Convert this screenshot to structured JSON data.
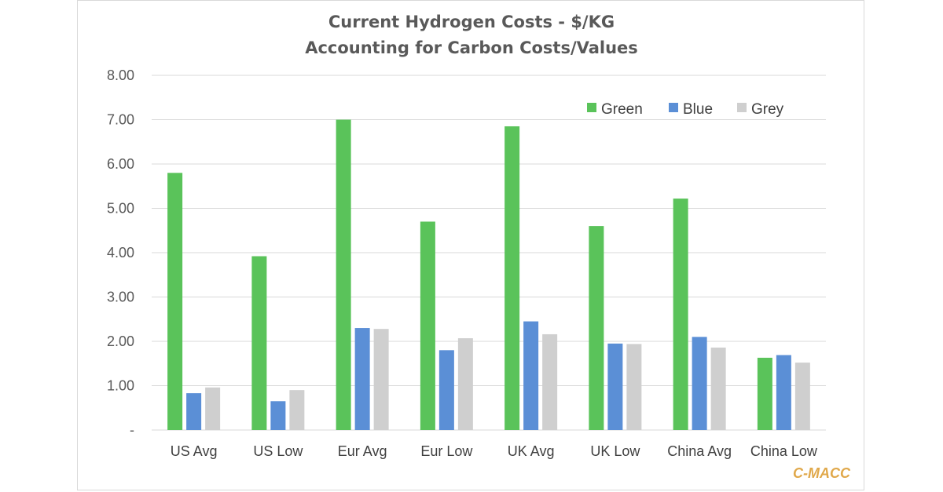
{
  "chart_data": {
    "type": "bar",
    "title": "Current Hydrogen Costs - $/KG",
    "subtitle": "Accounting for Carbon Costs/Values",
    "xlabel": "",
    "ylabel": "",
    "ylim": [
      0,
      8
    ],
    "yticks": [
      0,
      1,
      2,
      3,
      4,
      5,
      6,
      7,
      8
    ],
    "ytick_labels": [
      "-",
      "1.00",
      "2.00",
      "3.00",
      "4.00",
      "5.00",
      "6.00",
      "7.00",
      "8.00"
    ],
    "grid": true,
    "legend_position": "top-right",
    "categories": [
      "US Avg",
      "US Low",
      "Eur Avg",
      "Eur Low",
      "UK Avg",
      "UK Low",
      "China Avg",
      "China Low"
    ],
    "series": [
      {
        "name": "Green",
        "color": "#5ac35a",
        "values": [
          5.8,
          3.92,
          7.0,
          4.7,
          6.85,
          4.6,
          5.22,
          1.63
        ]
      },
      {
        "name": "Blue",
        "color": "#5b8fd6",
        "values": [
          0.83,
          0.65,
          2.3,
          1.8,
          2.45,
          1.95,
          2.1,
          1.69
        ]
      },
      {
        "name": "Grey",
        "color": "#cfcfcf",
        "values": [
          0.96,
          0.9,
          2.28,
          2.07,
          2.16,
          1.94,
          1.86,
          1.52
        ]
      }
    ]
  },
  "branding": "C-MACC"
}
